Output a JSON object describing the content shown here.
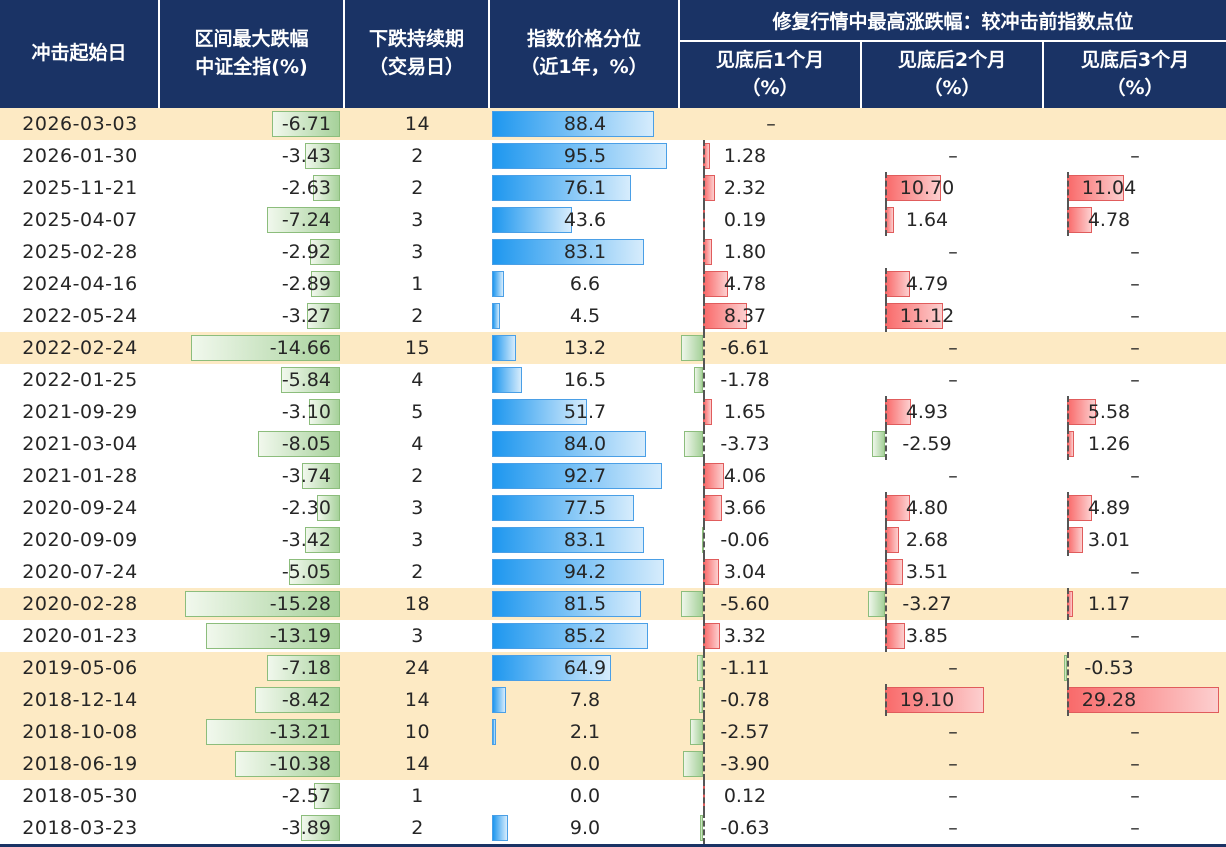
{
  "table": {
    "headers": {
      "date": "冲击起始日",
      "drawdown": [
        "区间最大跌幅",
        "中证全指(%)"
      ],
      "duration": [
        "下跌持续期",
        "（交易日）"
      ],
      "percentile": [
        "指数价格分位",
        "（近1年，%）"
      ],
      "recovery_group": "修复行情中最高涨跌幅：较冲击前指数点位",
      "m1": [
        "见底后1个月",
        "（%）"
      ],
      "m2": [
        "见底后2个月",
        "（%）"
      ],
      "m3": [
        "见底后3个月",
        "（%）"
      ]
    },
    "missing_mark": "–",
    "rows": [
      {
        "date": "2026-03-03",
        "hl": true,
        "drawdown": -6.71,
        "drawdown_t": "-6.71",
        "duration": "14",
        "pct": 88.4,
        "pct_t": "88.4",
        "m1": null,
        "m1_t": "–",
        "m2": null,
        "m2_t": "",
        "m3": null,
        "m3_t": ""
      },
      {
        "date": "2026-01-30",
        "hl": false,
        "drawdown": -3.43,
        "drawdown_t": "-3.43",
        "duration": "2",
        "pct": 95.5,
        "pct_t": "95.5",
        "m1": 1.28,
        "m1_t": "1.28",
        "m2": null,
        "m2_t": "–",
        "m3": null,
        "m3_t": "–"
      },
      {
        "date": "2025-11-21",
        "hl": false,
        "drawdown": -2.63,
        "drawdown_t": "-2.63",
        "duration": "2",
        "pct": 76.1,
        "pct_t": "76.1",
        "m1": 2.32,
        "m1_t": "2.32",
        "m2": 10.7,
        "m2_t": "10.70",
        "m3": 11.04,
        "m3_t": "11.04"
      },
      {
        "date": "2025-04-07",
        "hl": false,
        "drawdown": -7.24,
        "drawdown_t": "-7.24",
        "duration": "3",
        "pct": 43.6,
        "pct_t": "43.6",
        "m1": 0.19,
        "m1_t": "0.19",
        "m2": 1.64,
        "m2_t": "1.64",
        "m3": 4.78,
        "m3_t": "4.78"
      },
      {
        "date": "2025-02-28",
        "hl": false,
        "drawdown": -2.92,
        "drawdown_t": "-2.92",
        "duration": "3",
        "pct": 83.1,
        "pct_t": "83.1",
        "m1": 1.8,
        "m1_t": "1.80",
        "m2": null,
        "m2_t": "–",
        "m3": null,
        "m3_t": "–"
      },
      {
        "date": "2024-04-16",
        "hl": false,
        "drawdown": -2.89,
        "drawdown_t": "-2.89",
        "duration": "1",
        "pct": 6.6,
        "pct_t": "6.6",
        "m1": 4.78,
        "m1_t": "4.78",
        "m2": 4.79,
        "m2_t": "4.79",
        "m3": null,
        "m3_t": "–"
      },
      {
        "date": "2022-05-24",
        "hl": false,
        "drawdown": -3.27,
        "drawdown_t": "-3.27",
        "duration": "2",
        "pct": 4.5,
        "pct_t": "4.5",
        "m1": 8.37,
        "m1_t": "8.37",
        "m2": 11.12,
        "m2_t": "11.12",
        "m3": null,
        "m3_t": "–"
      },
      {
        "date": "2022-02-24",
        "hl": true,
        "drawdown": -14.66,
        "drawdown_t": "-14.66",
        "duration": "15",
        "pct": 13.2,
        "pct_t": "13.2",
        "m1": -6.61,
        "m1_t": "-6.61",
        "m2": null,
        "m2_t": "–",
        "m3": null,
        "m3_t": "–"
      },
      {
        "date": "2022-01-25",
        "hl": false,
        "drawdown": -5.84,
        "drawdown_t": "-5.84",
        "duration": "4",
        "pct": 16.5,
        "pct_t": "16.5",
        "m1": -1.78,
        "m1_t": "-1.78",
        "m2": null,
        "m2_t": "–",
        "m3": null,
        "m3_t": "–"
      },
      {
        "date": "2021-09-29",
        "hl": false,
        "drawdown": -3.1,
        "drawdown_t": "-3.10",
        "duration": "5",
        "pct": 51.7,
        "pct_t": "51.7",
        "m1": 1.65,
        "m1_t": "1.65",
        "m2": 4.93,
        "m2_t": "4.93",
        "m3": 5.58,
        "m3_t": "5.58"
      },
      {
        "date": "2021-03-04",
        "hl": false,
        "drawdown": -8.05,
        "drawdown_t": "-8.05",
        "duration": "4",
        "pct": 84.0,
        "pct_t": "84.0",
        "m1": -3.73,
        "m1_t": "-3.73",
        "m2": -2.59,
        "m2_t": "-2.59",
        "m3": 1.26,
        "m3_t": "1.26"
      },
      {
        "date": "2021-01-28",
        "hl": false,
        "drawdown": -3.74,
        "drawdown_t": "-3.74",
        "duration": "2",
        "pct": 92.7,
        "pct_t": "92.7",
        "m1": 4.06,
        "m1_t": "4.06",
        "m2": null,
        "m2_t": "–",
        "m3": null,
        "m3_t": "–"
      },
      {
        "date": "2020-09-24",
        "hl": false,
        "drawdown": -2.3,
        "drawdown_t": "-2.30",
        "duration": "3",
        "pct": 77.5,
        "pct_t": "77.5",
        "m1": 3.66,
        "m1_t": "3.66",
        "m2": 4.8,
        "m2_t": "4.80",
        "m3": 4.89,
        "m3_t": "4.89"
      },
      {
        "date": "2020-09-09",
        "hl": false,
        "drawdown": -3.42,
        "drawdown_t": "-3.42",
        "duration": "3",
        "pct": 83.1,
        "pct_t": "83.1",
        "m1": -0.06,
        "m1_t": "-0.06",
        "m2": 2.68,
        "m2_t": "2.68",
        "m3": 3.01,
        "m3_t": "3.01"
      },
      {
        "date": "2020-07-24",
        "hl": false,
        "drawdown": -5.05,
        "drawdown_t": "-5.05",
        "duration": "2",
        "pct": 94.2,
        "pct_t": "94.2",
        "m1": 3.04,
        "m1_t": "3.04",
        "m2": 3.51,
        "m2_t": "3.51",
        "m3": null,
        "m3_t": "–"
      },
      {
        "date": "2020-02-28",
        "hl": true,
        "drawdown": -15.28,
        "drawdown_t": "-15.28",
        "duration": "18",
        "pct": 81.5,
        "pct_t": "81.5",
        "m1": -5.6,
        "m1_t": "-5.60",
        "m2": -3.27,
        "m2_t": "-3.27",
        "m3": 1.17,
        "m3_t": "1.17"
      },
      {
        "date": "2020-01-23",
        "hl": false,
        "drawdown": -13.19,
        "drawdown_t": "-13.19",
        "duration": "3",
        "pct": 85.2,
        "pct_t": "85.2",
        "m1": 3.32,
        "m1_t": "3.32",
        "m2": 3.85,
        "m2_t": "3.85",
        "m3": null,
        "m3_t": "–"
      },
      {
        "date": "2019-05-06",
        "hl": true,
        "drawdown": -7.18,
        "drawdown_t": "-7.18",
        "duration": "24",
        "pct": 64.9,
        "pct_t": "64.9",
        "m1": -1.11,
        "m1_t": "-1.11",
        "m2": null,
        "m2_t": "–",
        "m3": -0.53,
        "m3_t": "-0.53"
      },
      {
        "date": "2018-12-14",
        "hl": true,
        "drawdown": -8.42,
        "drawdown_t": "-8.42",
        "duration": "14",
        "pct": 7.8,
        "pct_t": "7.8",
        "m1": -0.78,
        "m1_t": "-0.78",
        "m2": 19.1,
        "m2_t": "19.10",
        "m3": 29.28,
        "m3_t": "29.28"
      },
      {
        "date": "2018-10-08",
        "hl": true,
        "drawdown": -13.21,
        "drawdown_t": "-13.21",
        "duration": "10",
        "pct": 2.1,
        "pct_t": "2.1",
        "m1": -2.57,
        "m1_t": "-2.57",
        "m2": null,
        "m2_t": "–",
        "m3": null,
        "m3_t": "–"
      },
      {
        "date": "2018-06-19",
        "hl": true,
        "drawdown": -10.38,
        "drawdown_t": "-10.38",
        "duration": "14",
        "pct": 0.0,
        "pct_t": "0.0",
        "m1": -3.9,
        "m1_t": "-3.90",
        "m2": null,
        "m2_t": "–",
        "m3": null,
        "m3_t": "–"
      },
      {
        "date": "2018-05-30",
        "hl": false,
        "drawdown": -2.57,
        "drawdown_t": "-2.57",
        "duration": "1",
        "pct": 0.0,
        "pct_t": "0.0",
        "m1": 0.12,
        "m1_t": "0.12",
        "m2": null,
        "m2_t": "–",
        "m3": null,
        "m3_t": "–"
      },
      {
        "date": "2018-03-23",
        "hl": false,
        "drawdown": -3.89,
        "drawdown_t": "-3.89",
        "duration": "2",
        "pct": 9.0,
        "pct_t": "9.0",
        "m1": -0.63,
        "m1_t": "-0.63",
        "m2": null,
        "m2_t": "–",
        "m3": null,
        "m3_t": "–"
      }
    ]
  },
  "colors": {
    "header_bg": "#1a3365",
    "header_text": "#ffffff",
    "highlight_row_bg": "#fdeac4",
    "bar_green_start": "#f1f8ed",
    "bar_green_end": "#a6d19a",
    "bar_green_border": "#8cbd7c",
    "bar_blue_start": "#1e97ef",
    "bar_blue_end": "#d6ecfc",
    "bar_blue_border": "#4a9fe6",
    "bar_red_start": "#f96a6a",
    "bar_red_end": "#fccfcf",
    "bar_red_border": "#e05c5c",
    "axis_dash": "#555555",
    "body_text": "#262626"
  },
  "chart_data": {
    "type": "table",
    "title": "修复行情中最高涨跌幅：较冲击前指数点位",
    "columns": [
      "冲击起始日",
      "区间最大跌幅 中证全指(%)",
      "下跌持续期（交易日）",
      "指数价格分位（近1年，%）",
      "见底后1个月（%）",
      "见底后2个月（%）",
      "见底后3个月（%）"
    ],
    "rows": [
      [
        "2026-03-03",
        -6.71,
        14,
        88.4,
        null,
        null,
        null
      ],
      [
        "2026-01-30",
        -3.43,
        2,
        95.5,
        1.28,
        null,
        null
      ],
      [
        "2025-11-21",
        -2.63,
        2,
        76.1,
        2.32,
        10.7,
        11.04
      ],
      [
        "2025-04-07",
        -7.24,
        3,
        43.6,
        0.19,
        1.64,
        4.78
      ],
      [
        "2025-02-28",
        -2.92,
        3,
        83.1,
        1.8,
        null,
        null
      ],
      [
        "2024-04-16",
        -2.89,
        1,
        6.6,
        4.78,
        4.79,
        null
      ],
      [
        "2022-05-24",
        -3.27,
        2,
        4.5,
        8.37,
        11.12,
        null
      ],
      [
        "2022-02-24",
        -14.66,
        15,
        13.2,
        -6.61,
        null,
        null
      ],
      [
        "2022-01-25",
        -5.84,
        4,
        16.5,
        -1.78,
        null,
        null
      ],
      [
        "2021-09-29",
        -3.1,
        5,
        51.7,
        1.65,
        4.93,
        5.58
      ],
      [
        "2021-03-04",
        -8.05,
        4,
        84.0,
        -3.73,
        -2.59,
        1.26
      ],
      [
        "2021-01-28",
        -3.74,
        2,
        92.7,
        4.06,
        null,
        null
      ],
      [
        "2020-09-24",
        -2.3,
        3,
        77.5,
        3.66,
        4.8,
        4.89
      ],
      [
        "2020-09-09",
        -3.42,
        3,
        83.1,
        -0.06,
        2.68,
        3.01
      ],
      [
        "2020-07-24",
        -5.05,
        2,
        94.2,
        3.04,
        3.51,
        null
      ],
      [
        "2020-02-28",
        -15.28,
        18,
        81.5,
        -5.6,
        -3.27,
        1.17
      ],
      [
        "2020-01-23",
        -13.19,
        3,
        85.2,
        3.32,
        3.85,
        null
      ],
      [
        "2019-05-06",
        -7.18,
        24,
        64.9,
        -1.11,
        null,
        -0.53
      ],
      [
        "2018-12-14",
        -8.42,
        14,
        7.8,
        -0.78,
        19.1,
        29.28
      ],
      [
        "2018-10-08",
        -13.21,
        10,
        2.1,
        -2.57,
        null,
        null
      ],
      [
        "2018-06-19",
        -10.38,
        14,
        0.0,
        -3.9,
        null,
        null
      ],
      [
        "2018-05-30",
        -2.57,
        1,
        0.0,
        0.12,
        null,
        null
      ],
      [
        "2018-03-23",
        -3.89,
        2,
        9.0,
        -0.63,
        null,
        null
      ]
    ],
    "highlighted_rows": [
      "2026-03-03",
      "2022-02-24",
      "2020-02-28",
      "2019-05-06",
      "2018-12-14",
      "2018-10-08",
      "2018-06-19"
    ],
    "notes": "in-cell data bars: green = drawdown magnitude (right-anchored), blue = price percentile 0-100 (left-anchored), red/green from dashed axis = post-bottom gain/loss"
  }
}
